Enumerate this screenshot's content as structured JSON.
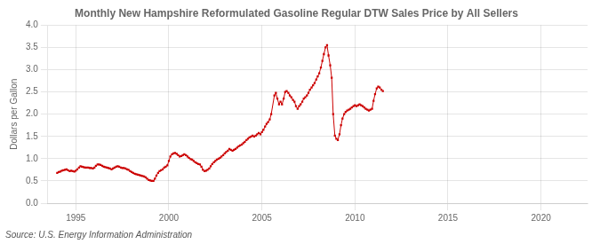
{
  "chart_data": {
    "type": "line",
    "title": "Monthly New Hampshire Reformulated Gasoline Regular DTW Sales Price by All Sellers",
    "ylabel": "Dollars per Gallon",
    "annotation": "Source: U.S. Energy Information Administration",
    "color": "#cc0000",
    "marker": "square",
    "line_style": "solid",
    "grid": true,
    "xlim": [
      1993.5,
      2022.5
    ],
    "ylim": [
      0.0,
      4.0
    ],
    "xticks": [
      1995,
      2000,
      2005,
      2010,
      2015,
      2020
    ],
    "yticks": [
      {
        "value": 0.0,
        "label": "0.0"
      },
      0.5,
      {
        "value": 1.0,
        "label": "1.0"
      },
      1.5,
      {
        "value": 2.0,
        "label": "2.0"
      },
      2.5,
      {
        "value": 3.0,
        "label": "3.0"
      },
      3.5,
      {
        "value": 4.0,
        "label": "4.0"
      }
    ],
    "x": [
      1994.0,
      1994.08,
      1994.17,
      1994.25,
      1994.33,
      1994.42,
      1994.5,
      1994.58,
      1994.67,
      1994.75,
      1994.83,
      1994.92,
      1995.0,
      1995.08,
      1995.17,
      1995.25,
      1995.33,
      1995.42,
      1995.5,
      1995.58,
      1995.67,
      1995.75,
      1995.83,
      1995.92,
      1996.0,
      1996.08,
      1996.17,
      1996.25,
      1996.33,
      1996.42,
      1996.5,
      1996.58,
      1996.67,
      1996.75,
      1996.83,
      1996.92,
      1997.0,
      1997.08,
      1997.17,
      1997.25,
      1997.33,
      1997.42,
      1997.5,
      1997.58,
      1997.67,
      1997.75,
      1997.83,
      1997.92,
      1998.0,
      1998.08,
      1998.17,
      1998.25,
      1998.33,
      1998.42,
      1998.5,
      1998.58,
      1998.67,
      1998.75,
      1998.83,
      1998.92,
      1999.0,
      1999.08,
      1999.17,
      1999.25,
      1999.33,
      1999.42,
      1999.5,
      1999.58,
      1999.67,
      1999.75,
      1999.83,
      1999.92,
      2000.0,
      2000.08,
      2000.17,
      2000.25,
      2000.33,
      2000.42,
      2000.5,
      2000.58,
      2000.67,
      2000.75,
      2000.83,
      2000.92,
      2001.0,
      2001.08,
      2001.17,
      2001.25,
      2001.33,
      2001.42,
      2001.5,
      2001.58,
      2001.67,
      2001.75,
      2001.83,
      2001.92,
      2002.0,
      2002.08,
      2002.17,
      2002.25,
      2002.33,
      2002.42,
      2002.5,
      2002.58,
      2002.67,
      2002.75,
      2002.83,
      2002.92,
      2003.0,
      2003.08,
      2003.17,
      2003.25,
      2003.33,
      2003.42,
      2003.5,
      2003.58,
      2003.67,
      2003.75,
      2003.83,
      2003.92,
      2004.0,
      2004.08,
      2004.17,
      2004.25,
      2004.33,
      2004.42,
      2004.5,
      2004.58,
      2004.67,
      2004.75,
      2004.83,
      2004.92,
      2005.0,
      2005.08,
      2005.17,
      2005.25,
      2005.33,
      2005.42,
      2005.5,
      2005.67,
      2005.75,
      2005.83,
      2005.92,
      2006.0,
      2006.08,
      2006.17,
      2006.25,
      2006.33,
      2006.42,
      2006.5,
      2006.58,
      2006.67,
      2006.75,
      2006.83,
      2006.92,
      2007.0,
      2007.08,
      2007.17,
      2007.25,
      2007.33,
      2007.42,
      2007.5,
      2007.58,
      2007.67,
      2007.75,
      2007.83,
      2007.92,
      2008.0,
      2008.08,
      2008.17,
      2008.25,
      2008.33,
      2008.42,
      2008.5,
      2008.58,
      2008.67,
      2008.75,
      2008.83,
      2008.92,
      2009.0,
      2009.08,
      2009.17,
      2009.25,
      2009.33,
      2009.42,
      2009.5,
      2009.58,
      2009.67,
      2009.75,
      2009.83,
      2009.92,
      2010.0,
      2010.08,
      2010.17,
      2010.25,
      2010.33,
      2010.42,
      2010.5,
      2010.58,
      2010.67,
      2010.75,
      2010.83,
      2010.92,
      2011.0,
      2011.08,
      2011.17,
      2011.25,
      2011.33,
      2011.42,
      2011.5
    ],
    "values": [
      0.68,
      0.7,
      0.71,
      0.73,
      0.74,
      0.75,
      0.76,
      0.74,
      0.72,
      0.73,
      0.72,
      0.71,
      0.73,
      0.76,
      0.8,
      0.83,
      0.82,
      0.81,
      0.8,
      0.8,
      0.8,
      0.79,
      0.79,
      0.78,
      0.8,
      0.84,
      0.87,
      0.87,
      0.86,
      0.84,
      0.82,
      0.81,
      0.8,
      0.79,
      0.78,
      0.76,
      0.78,
      0.8,
      0.82,
      0.83,
      0.82,
      0.8,
      0.79,
      0.79,
      0.78,
      0.76,
      0.75,
      0.72,
      0.7,
      0.68,
      0.66,
      0.65,
      0.64,
      0.63,
      0.62,
      0.61,
      0.6,
      0.58,
      0.55,
      0.52,
      0.51,
      0.5,
      0.5,
      0.55,
      0.62,
      0.68,
      0.72,
      0.74,
      0.76,
      0.8,
      0.82,
      0.85,
      0.95,
      1.05,
      1.1,
      1.12,
      1.13,
      1.11,
      1.08,
      1.05,
      1.06,
      1.08,
      1.1,
      1.08,
      1.05,
      1.02,
      0.99,
      0.98,
      0.95,
      0.92,
      0.9,
      0.88,
      0.87,
      0.82,
      0.75,
      0.72,
      0.73,
      0.75,
      0.78,
      0.83,
      0.88,
      0.92,
      0.95,
      0.98,
      1.0,
      1.02,
      1.05,
      1.08,
      1.12,
      1.15,
      1.18,
      1.22,
      1.2,
      1.18,
      1.2,
      1.22,
      1.25,
      1.28,
      1.3,
      1.32,
      1.35,
      1.38,
      1.42,
      1.45,
      1.48,
      1.5,
      1.52,
      1.5,
      1.52,
      1.55,
      1.58,
      1.55,
      1.6,
      1.65,
      1.72,
      1.78,
      1.82,
      1.88,
      2.0,
      2.42,
      2.48,
      2.35,
      2.22,
      2.28,
      2.22,
      2.35,
      2.5,
      2.52,
      2.48,
      2.42,
      2.38,
      2.32,
      2.28,
      2.18,
      2.12,
      2.18,
      2.22,
      2.28,
      2.35,
      2.38,
      2.42,
      2.48,
      2.55,
      2.6,
      2.65,
      2.7,
      2.78,
      2.85,
      2.92,
      3.05,
      3.2,
      3.35,
      3.5,
      3.55,
      3.32,
      3.1,
      2.82,
      2.0,
      1.52,
      1.45,
      1.42,
      1.55,
      1.75,
      1.9,
      2.0,
      2.05,
      2.08,
      2.1,
      2.12,
      2.15,
      2.18,
      2.2,
      2.18,
      2.2,
      2.22,
      2.2,
      2.18,
      2.15,
      2.12,
      2.1,
      2.08,
      2.1,
      2.12,
      2.3,
      2.45,
      2.58,
      2.62,
      2.6,
      2.55,
      2.52
    ]
  }
}
